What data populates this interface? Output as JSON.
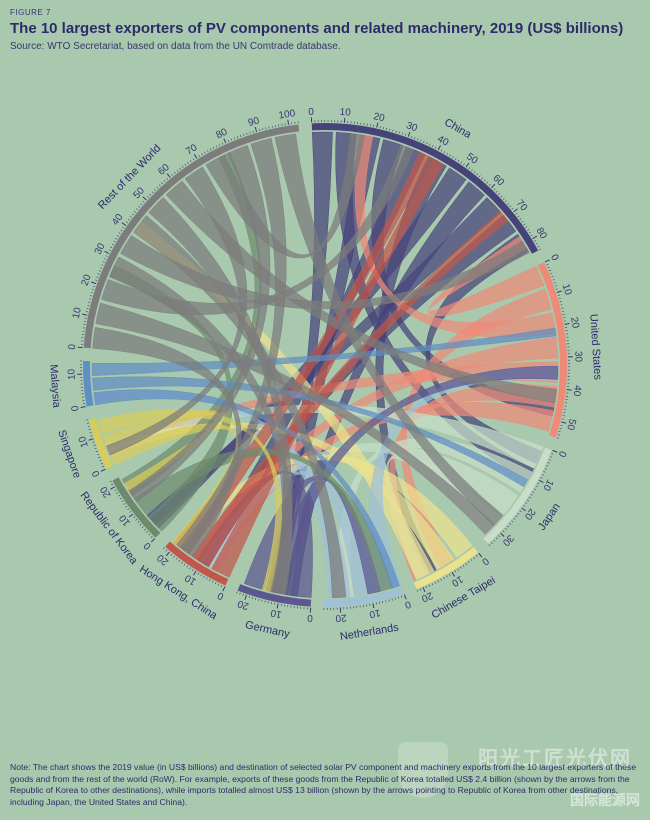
{
  "figure_label": "FIGURE 7",
  "title": "The 10 largest exporters of PV components and related machinery, 2019 (US$ billions)",
  "source": "Source: WTO Secretariat, based on data from the UN Comtrade database.",
  "note": "Note: The chart shows the 2019 value (in US$ billions) and destination of selected solar PV component and machinery exports from the 10 largest exporters of these goods and from the rest of the world (RoW). For example, exports of these goods from the Republic of Korea totalled US$ 2.4 billion (shown by the arrows from the Republic of Korea to other destinations), while imports totalled almost US$ 13 billion (shown by the arrows pointing to Republic of Korea from other destinations, including Japan, the United States and China).",
  "watermark": {
    "main": "阳光工匠光伏网",
    "sub": "国际能源网"
  },
  "chart_data": {
    "type": "chord",
    "unit": "US$ billions",
    "segments": [
      {
        "name": "China",
        "total": 84,
        "color": "#46427a",
        "ticks": [
          "0",
          "10",
          "20",
          "30",
          "40",
          "50",
          "60",
          "70",
          "80"
        ]
      },
      {
        "name": "United States",
        "total": 55,
        "color": "#ee8a78",
        "ticks": [
          "0",
          "10",
          "20",
          "30",
          "40",
          "50"
        ]
      },
      {
        "name": "Japan",
        "total": 35,
        "color": "#c8dec9",
        "ticks": [
          "0",
          "10",
          "20",
          "30"
        ]
      },
      {
        "name": "Chinese Taipei",
        "total": 22,
        "color": "#ece28e",
        "ticks": [
          "0",
          "10",
          "20"
        ]
      },
      {
        "name": "Netherlands",
        "total": 25,
        "color": "#9fc1d8",
        "ticks": [
          "0",
          "10",
          "20"
        ]
      },
      {
        "name": "Germany",
        "total": 23,
        "color": "#5c5790",
        "ticks": [
          "0",
          "10",
          "20"
        ]
      },
      {
        "name": "Hong Kong, China",
        "total": 22,
        "color": "#c0574a",
        "ticks": [
          "0",
          "10",
          "20"
        ]
      },
      {
        "name": "Republic of Korea",
        "total": 22,
        "color": "#6e8a6d",
        "ticks": [
          "0",
          "10",
          "20"
        ]
      },
      {
        "name": "Singapore",
        "total": 16,
        "color": "#d8cc5a",
        "ticks": [
          "0",
          "10"
        ]
      },
      {
        "name": "Malaysia",
        "total": 14,
        "color": "#5f8ec2",
        "ticks": [
          "0",
          "10"
        ]
      },
      {
        "name": "Rest of the World",
        "total": 103,
        "color": "#7c7c7c",
        "ticks": [
          "0",
          "10",
          "20",
          "30",
          "40",
          "50",
          "60",
          "70",
          "80",
          "90",
          "100"
        ]
      }
    ]
  }
}
